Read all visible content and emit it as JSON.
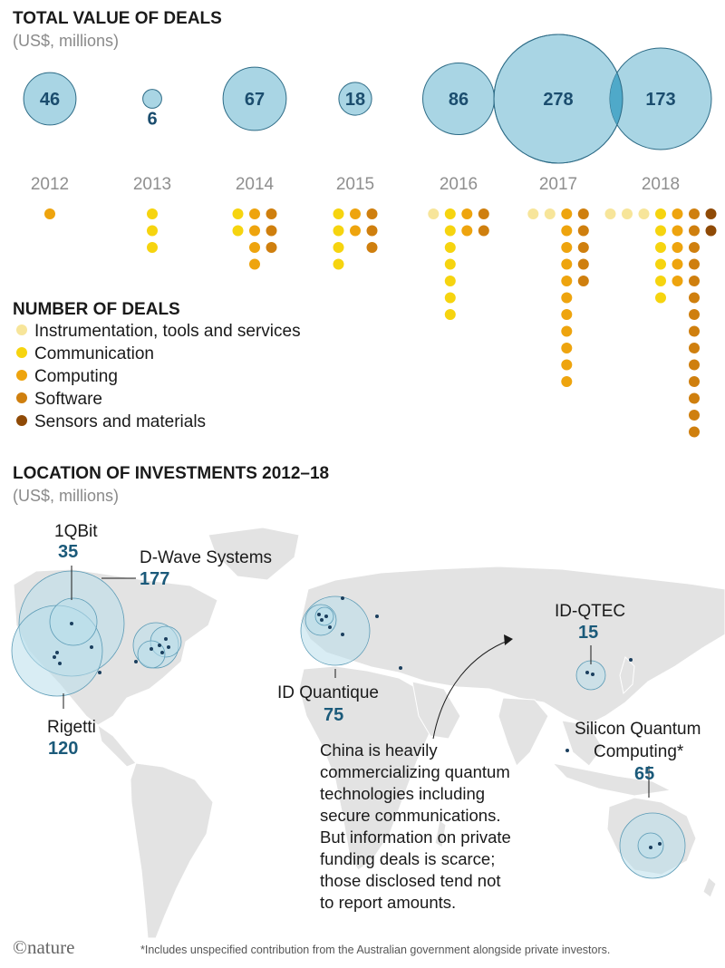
{
  "chart_data": [
    {
      "type": "bubble",
      "title": "TOTAL VALUE OF DEALS",
      "subtitle": "(US$, millions)",
      "categories": [
        "2012",
        "2013",
        "2014",
        "2015",
        "2016",
        "2017",
        "2018"
      ],
      "values": [
        46,
        6,
        67,
        18,
        86,
        278,
        173
      ],
      "labels": [
        "46",
        "6",
        "67",
        "18",
        "86",
        "278",
        "173"
      ]
    },
    {
      "type": "dot-stack",
      "title": "NUMBER OF DEALS",
      "categories": [
        "2012",
        "2013",
        "2014",
        "2015",
        "2016",
        "2017",
        "2018"
      ],
      "legend": [
        {
          "name": "Instrumentation, tools and services",
          "color": "#f7e59a"
        },
        {
          "name": "Communication",
          "color": "#f6d40f"
        },
        {
          "name": "Computing",
          "color": "#eea40e"
        },
        {
          "name": "Software",
          "color": "#cf7f0e"
        },
        {
          "name": "Sensors and materials",
          "color": "#8f4a06"
        }
      ],
      "series": [
        {
          "name": "Instrumentation, tools and services",
          "values": [
            0,
            0,
            0,
            0,
            1,
            2,
            3
          ]
        },
        {
          "name": "Communication",
          "values": [
            0,
            3,
            2,
            4,
            7,
            0,
            6
          ]
        },
        {
          "name": "Computing",
          "values": [
            1,
            0,
            4,
            2,
            2,
            11,
            5
          ]
        },
        {
          "name": "Software",
          "values": [
            0,
            0,
            3,
            3,
            2,
            5,
            14
          ]
        },
        {
          "name": "Sensors and materials",
          "values": [
            0,
            0,
            0,
            0,
            0,
            0,
            2
          ]
        }
      ]
    },
    {
      "type": "map-bubble",
      "title": "LOCATION OF INVESTMENTS 2012–18",
      "subtitle": "(US$, millions)",
      "labeled": [
        {
          "name": "1QBit",
          "value": "35"
        },
        {
          "name": "D-Wave Systems",
          "value": "177"
        },
        {
          "name": "Rigetti",
          "value": "120"
        },
        {
          "name": "ID Quantique",
          "value": "75"
        },
        {
          "name": "ID-QTEC",
          "value": "15"
        },
        {
          "name": "Silicon Quantum",
          "name2": "Computing*",
          "value": "65"
        }
      ],
      "annotation": [
        "China is heavily",
        "commercializing quantum",
        "technologies including",
        "secure communications.",
        "But information on private",
        "funding deals is scarce;",
        "those disclosed tend not",
        "to report amounts."
      ]
    }
  ],
  "footer": {
    "brand": "©nature",
    "footnote": "*Includes unspecified contribution from the Australian government alongside private investors."
  },
  "colors": {
    "bubble_fill": "#a4d3e3",
    "bubble_stroke": "#2d6b86",
    "land": "#e3e3e3",
    "map_bubble": "#b9dfeb"
  }
}
